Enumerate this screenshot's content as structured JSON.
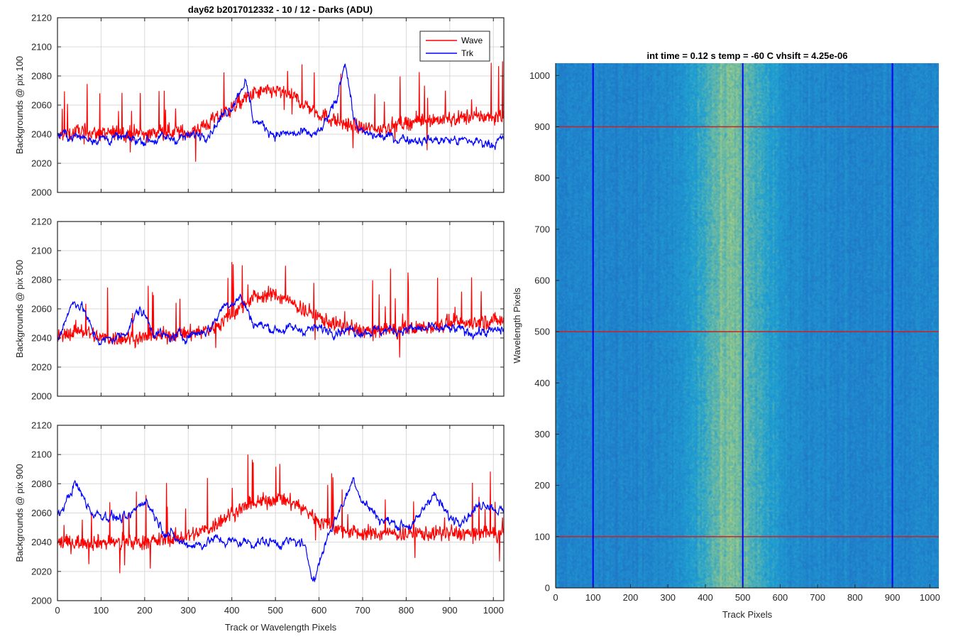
{
  "figure_title": "day62 b2017012332 - 10 / 12 - Darks (ADU)",
  "colors": {
    "wave": "#ff0000",
    "trk": "#0000ff",
    "grid": "#d9d9d9",
    "axes": "#262626",
    "image_base": "#1f9bd2",
    "image_bright": "#c8d86a",
    "image_dim": "#1f74c9"
  },
  "chart_data": [
    {
      "type": "line",
      "ylabel": "Backgrounds @ pix 100",
      "xlabel": "",
      "xlim": [
        0,
        1024
      ],
      "ylim": [
        2000,
        2120
      ],
      "xticks": [
        0,
        100,
        200,
        300,
        400,
        500,
        600,
        700,
        800,
        900,
        1000
      ],
      "yticks": [
        2000,
        2020,
        2040,
        2060,
        2080,
        2100,
        2120
      ],
      "grid": true,
      "legend": {
        "placement": "top-right",
        "entries": [
          "Wave",
          "Trk"
        ]
      },
      "series": [
        {
          "name": "Wave",
          "color": "#ff0000",
          "x": [
            0,
            50,
            100,
            150,
            200,
            250,
            300,
            350,
            400,
            450,
            500,
            550,
            600,
            650,
            700,
            750,
            800,
            850,
            900,
            950,
            1000,
            1024
          ],
          "y": [
            2038,
            2042,
            2040,
            2041,
            2040,
            2042,
            2041,
            2048,
            2058,
            2068,
            2070,
            2064,
            2054,
            2048,
            2044,
            2044,
            2048,
            2050,
            2050,
            2052,
            2052,
            2052
          ]
        },
        {
          "name": "Trk",
          "color": "#0000ff",
          "x": [
            0,
            50,
            100,
            150,
            200,
            250,
            300,
            350,
            400,
            430,
            450,
            500,
            550,
            600,
            640,
            660,
            680,
            700,
            750,
            800,
            850,
            900,
            950,
            1000,
            1024
          ],
          "y": [
            2040,
            2038,
            2037,
            2037,
            2036,
            2037,
            2038,
            2042,
            2060,
            2077,
            2050,
            2040,
            2040,
            2040,
            2062,
            2092,
            2050,
            2040,
            2038,
            2037,
            2036,
            2036,
            2035,
            2034,
            2036
          ]
        }
      ]
    },
    {
      "type": "line",
      "ylabel": "Backgrounds @ pix 500",
      "xlabel": "",
      "xlim": [
        0,
        1024
      ],
      "ylim": [
        2000,
        2120
      ],
      "xticks": [
        0,
        100,
        200,
        300,
        400,
        500,
        600,
        700,
        800,
        900,
        1000
      ],
      "yticks": [
        2000,
        2020,
        2040,
        2060,
        2080,
        2100,
        2120
      ],
      "grid": true,
      "series": [
        {
          "name": "Wave",
          "color": "#ff0000",
          "x": [
            0,
            50,
            100,
            150,
            200,
            250,
            300,
            350,
            400,
            450,
            500,
            550,
            600,
            650,
            700,
            750,
            800,
            850,
            900,
            950,
            1000,
            1024
          ],
          "y": [
            2040,
            2046,
            2040,
            2040,
            2040,
            2042,
            2043,
            2046,
            2056,
            2068,
            2070,
            2062,
            2054,
            2048,
            2045,
            2045,
            2046,
            2048,
            2050,
            2050,
            2052,
            2052
          ]
        },
        {
          "name": "Trk",
          "color": "#0000ff",
          "x": [
            0,
            20,
            40,
            60,
            80,
            100,
            150,
            190,
            220,
            250,
            300,
            350,
            380,
            420,
            450,
            500,
            550,
            600,
            650,
            700,
            750,
            800,
            850,
            900,
            950,
            1000,
            1024
          ],
          "y": [
            2038,
            2055,
            2066,
            2060,
            2044,
            2037,
            2042,
            2060,
            2045,
            2040,
            2042,
            2046,
            2062,
            2068,
            2050,
            2046,
            2046,
            2046,
            2046,
            2045,
            2045,
            2046,
            2046,
            2046,
            2044,
            2044,
            2046
          ]
        }
      ]
    },
    {
      "type": "line",
      "ylabel": "Backgrounds @ pix 900",
      "xlabel": "Track or Wavelength Pixels",
      "xlim": [
        0,
        1024
      ],
      "ylim": [
        2000,
        2120
      ],
      "xticks": [
        0,
        100,
        200,
        300,
        400,
        500,
        600,
        700,
        800,
        900,
        1000
      ],
      "yticks": [
        2000,
        2020,
        2040,
        2060,
        2080,
        2100,
        2120
      ],
      "grid": true,
      "series": [
        {
          "name": "Wave",
          "color": "#ff0000",
          "x": [
            0,
            50,
            100,
            150,
            200,
            250,
            300,
            350,
            400,
            450,
            500,
            550,
            600,
            650,
            700,
            750,
            800,
            850,
            900,
            950,
            1000,
            1024
          ],
          "y": [
            2040,
            2040,
            2040,
            2040,
            2040,
            2042,
            2044,
            2050,
            2060,
            2066,
            2070,
            2066,
            2055,
            2048,
            2046,
            2046,
            2046,
            2046,
            2046,
            2046,
            2046,
            2046
          ]
        },
        {
          "name": "Trk",
          "color": "#0000ff",
          "x": [
            0,
            40,
            80,
            120,
            160,
            200,
            240,
            280,
            320,
            360,
            400,
            440,
            480,
            520,
            560,
            590,
            620,
            660,
            680,
            700,
            740,
            780,
            820,
            860,
            900,
            940,
            980,
            1024
          ],
          "y": [
            2056,
            2080,
            2060,
            2058,
            2055,
            2070,
            2050,
            2040,
            2038,
            2042,
            2040,
            2040,
            2040,
            2040,
            2040,
            2015,
            2045,
            2070,
            2084,
            2068,
            2056,
            2052,
            2052,
            2074,
            2056,
            2058,
            2068,
            2060
          ]
        }
      ]
    },
    {
      "type": "heatmap",
      "title": "int time = 0.12 s    temp = -60 C    vhsift = 4.25e-06",
      "xlabel": "Track Pixels",
      "ylabel": "Wavelength Pixels",
      "xlim": [
        0,
        1024
      ],
      "ylim": [
        0,
        1024
      ],
      "xticks": [
        0,
        100,
        200,
        300,
        400,
        500,
        600,
        700,
        800,
        900,
        1000
      ],
      "yticks": [
        0,
        100,
        200,
        300,
        400,
        500,
        600,
        700,
        800,
        900,
        1000
      ],
      "vertical_markers": {
        "color": "#0000ff",
        "x": [
          100,
          500,
          900
        ]
      },
      "horizontal_markers": {
        "color": "#cc2222",
        "y": [
          100,
          500,
          900
        ]
      }
    }
  ]
}
